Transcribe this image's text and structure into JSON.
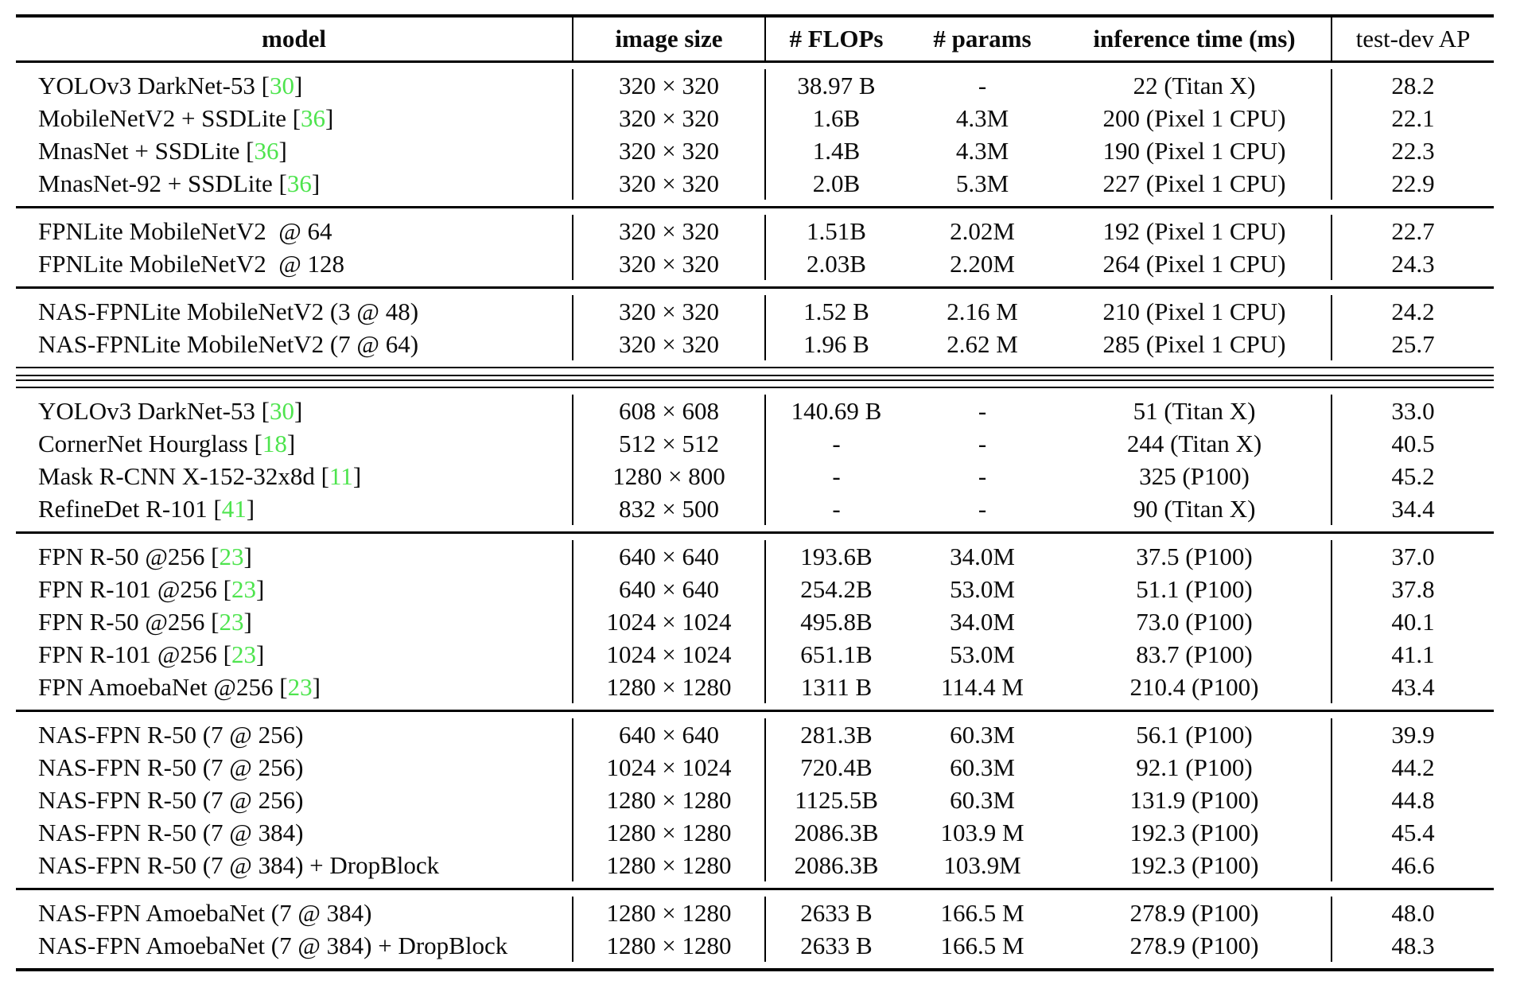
{
  "colors": {
    "citation_green": "#4ee44e",
    "rule_black": "#000000",
    "background": "#ffffff"
  },
  "header": {
    "columns": [
      {
        "label": "model"
      },
      {
        "label": "image size"
      },
      {
        "label": "# FLOPs"
      },
      {
        "label": "# params"
      },
      {
        "label": "inference time (ms)"
      },
      {
        "label": "test-dev AP"
      }
    ]
  },
  "sections": [
    {
      "separator_after": "single",
      "rows": [
        {
          "model": "YOLOv3 DarkNet-53",
          "cite": "30",
          "size": "320 × 320",
          "flops": "38.97 B",
          "params": "-",
          "time": "22 (Titan X)",
          "ap": "28.2"
        },
        {
          "model": "MobileNetV2 + SSDLite",
          "cite": "36",
          "size": "320 × 320",
          "flops": "1.6B",
          "params": "4.3M",
          "time": "200 (Pixel 1 CPU)",
          "ap": "22.1"
        },
        {
          "model": "MnasNet + SSDLite",
          "cite": "36",
          "size": "320 × 320",
          "flops": "1.4B",
          "params": "4.3M",
          "time": "190 (Pixel 1 CPU)",
          "ap": "22.3"
        },
        {
          "model": "MnasNet-92 + SSDLite",
          "cite": "36",
          "size": "320 × 320",
          "flops": "2.0B",
          "params": "5.3M",
          "time": "227 (Pixel 1 CPU)",
          "ap": "22.9"
        }
      ]
    },
    {
      "separator_after": "single",
      "rows": [
        {
          "model": "FPNLite MobileNetV2  @ 64",
          "cite": null,
          "size": "320 × 320",
          "flops": "1.51B",
          "params": "2.02M",
          "time": "192 (Pixel 1 CPU)",
          "ap": "22.7"
        },
        {
          "model": "FPNLite MobileNetV2  @ 128",
          "cite": null,
          "size": "320 × 320",
          "flops": "2.03B",
          "params": "2.20M",
          "time": "264 (Pixel 1 CPU)",
          "ap": "24.3"
        }
      ]
    },
    {
      "separator_after": "double",
      "rows": [
        {
          "model": "NAS-FPNLite MobileNetV2 (3 @ 48)",
          "cite": null,
          "size": "320 × 320",
          "flops": "1.52 B",
          "params": "2.16 M",
          "time": "210 (Pixel 1 CPU)",
          "ap": "24.2"
        },
        {
          "model": "NAS-FPNLite MobileNetV2 (7 @ 64)",
          "cite": null,
          "size": "320 × 320",
          "flops": "1.96 B",
          "params": "2.62 M",
          "time": "285 (Pixel 1 CPU)",
          "ap": "25.7"
        }
      ]
    },
    {
      "separator_after": "single",
      "rows": [
        {
          "model": "YOLOv3 DarkNet-53",
          "cite": "30",
          "size": "608 × 608",
          "flops": "140.69 B",
          "params": "-",
          "time": "51 (Titan X)",
          "ap": "33.0"
        },
        {
          "model": "CornerNet Hourglass",
          "cite": "18",
          "size": "512 × 512",
          "flops": "-",
          "params": "-",
          "time": "244 (Titan X)",
          "ap": "40.5"
        },
        {
          "model": "Mask R-CNN X-152-32x8d",
          "cite": "11",
          "size": "1280 × 800",
          "flops": "-",
          "params": "-",
          "time": "325 (P100)",
          "ap": "45.2"
        },
        {
          "model": "RefineDet R-101",
          "cite": "41",
          "size": "832 × 500",
          "flops": "-",
          "params": "-",
          "time": "90 (Titan X)",
          "ap": "34.4"
        }
      ]
    },
    {
      "separator_after": "single",
      "rows": [
        {
          "model": "FPN R-50 @256",
          "cite": "23",
          "size": "640 × 640",
          "flops": "193.6B",
          "params": "34.0M",
          "time": "37.5 (P100)",
          "ap": "37.0"
        },
        {
          "model": "FPN R-101 @256",
          "cite": "23",
          "size": "640 × 640",
          "flops": "254.2B",
          "params": "53.0M",
          "time": "51.1 (P100)",
          "ap": "37.8"
        },
        {
          "model": "FPN R-50 @256",
          "cite": "23",
          "size": "1024 × 1024",
          "flops": "495.8B",
          "params": "34.0M",
          "time": "73.0 (P100)",
          "ap": "40.1"
        },
        {
          "model": "FPN R-101 @256",
          "cite": "23",
          "size": "1024 × 1024",
          "flops": "651.1B",
          "params": "53.0M",
          "time": "83.7 (P100)",
          "ap": "41.1"
        },
        {
          "model": "FPN AmoebaNet @256",
          "cite": "23",
          "size": "1280 × 1280",
          "flops": "1311 B",
          "params": "114.4 M",
          "time": "210.4 (P100)",
          "ap": "43.4"
        }
      ]
    },
    {
      "separator_after": "single",
      "rows": [
        {
          "model": "NAS-FPN R-50 (7 @ 256)",
          "cite": null,
          "size": "640 × 640",
          "flops": "281.3B",
          "params": "60.3M",
          "time": "56.1 (P100)",
          "ap": "39.9"
        },
        {
          "model": "NAS-FPN R-50 (7 @ 256)",
          "cite": null,
          "size": "1024 × 1024",
          "flops": "720.4B",
          "params": "60.3M",
          "time": "92.1 (P100)",
          "ap": "44.2"
        },
        {
          "model": "NAS-FPN R-50 (7 @ 256)",
          "cite": null,
          "size": "1280 × 1280",
          "flops": "1125.5B",
          "params": "60.3M",
          "time": "131.9 (P100)",
          "ap": "44.8"
        },
        {
          "model": "NAS-FPN R-50 (7 @ 384)",
          "cite": null,
          "size": "1280 × 1280",
          "flops": "2086.3B",
          "params": "103.9 M",
          "time": "192.3 (P100)",
          "ap": "45.4"
        },
        {
          "model": "NAS-FPN R-50 (7 @ 384) + DropBlock",
          "cite": null,
          "size": "1280 × 1280",
          "flops": "2086.3B",
          "params": "103.9M",
          "time": "192.3 (P100)",
          "ap": "46.6"
        }
      ]
    },
    {
      "separator_after": "none",
      "rows": [
        {
          "model": "NAS-FPN AmoebaNet (7 @ 384)",
          "cite": null,
          "size": "1280 × 1280",
          "flops": "2633 B",
          "params": "166.5 M",
          "time": "278.9 (P100)",
          "ap": "48.0"
        },
        {
          "model": "NAS-FPN AmoebaNet (7 @ 384) + DropBlock",
          "cite": null,
          "size": "1280 × 1280",
          "flops": "2633 B",
          "params": "166.5 M",
          "time": "278.9 (P100)",
          "ap": "48.3"
        }
      ]
    }
  ]
}
